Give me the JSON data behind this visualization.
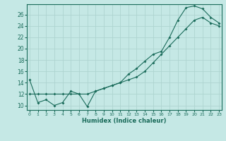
{
  "title": "",
  "xlabel": "Humidex (Indice chaleur)",
  "ylabel": "",
  "x_ticks": [
    0,
    1,
    2,
    3,
    4,
    5,
    6,
    7,
    8,
    9,
    10,
    11,
    12,
    13,
    14,
    15,
    16,
    17,
    18,
    19,
    20,
    21,
    22,
    23
  ],
  "y_ticks": [
    10,
    12,
    14,
    16,
    18,
    20,
    22,
    24,
    26
  ],
  "xlim": [
    -0.3,
    23.3
  ],
  "ylim": [
    9.2,
    27.8
  ],
  "bg_color": "#c5e8e5",
  "grid_color": "#aed4d0",
  "line_color": "#1a6b5a",
  "line1_x": [
    0,
    1,
    2,
    3,
    4,
    5,
    6,
    7,
    8,
    9,
    10,
    11,
    12,
    13,
    14,
    15,
    16,
    17,
    18,
    19,
    20,
    21,
    22,
    23
  ],
  "line1_y": [
    14.5,
    10.5,
    11.0,
    10.0,
    10.5,
    12.5,
    12.0,
    9.8,
    12.5,
    13.0,
    13.5,
    14.0,
    15.5,
    16.5,
    17.8,
    19.0,
    19.5,
    22.0,
    25.0,
    27.2,
    27.5,
    27.0,
    25.5,
    24.5
  ],
  "line2_x": [
    0,
    1,
    2,
    3,
    4,
    5,
    6,
    7,
    8,
    9,
    10,
    11,
    12,
    13,
    14,
    15,
    16,
    17,
    18,
    19,
    20,
    21,
    22,
    23
  ],
  "line2_y": [
    12.0,
    12.0,
    12.0,
    12.0,
    12.0,
    12.0,
    12.0,
    12.0,
    12.5,
    13.0,
    13.5,
    14.0,
    14.5,
    15.0,
    16.0,
    17.5,
    19.0,
    20.5,
    22.0,
    23.5,
    25.0,
    25.5,
    24.5,
    24.0
  ]
}
